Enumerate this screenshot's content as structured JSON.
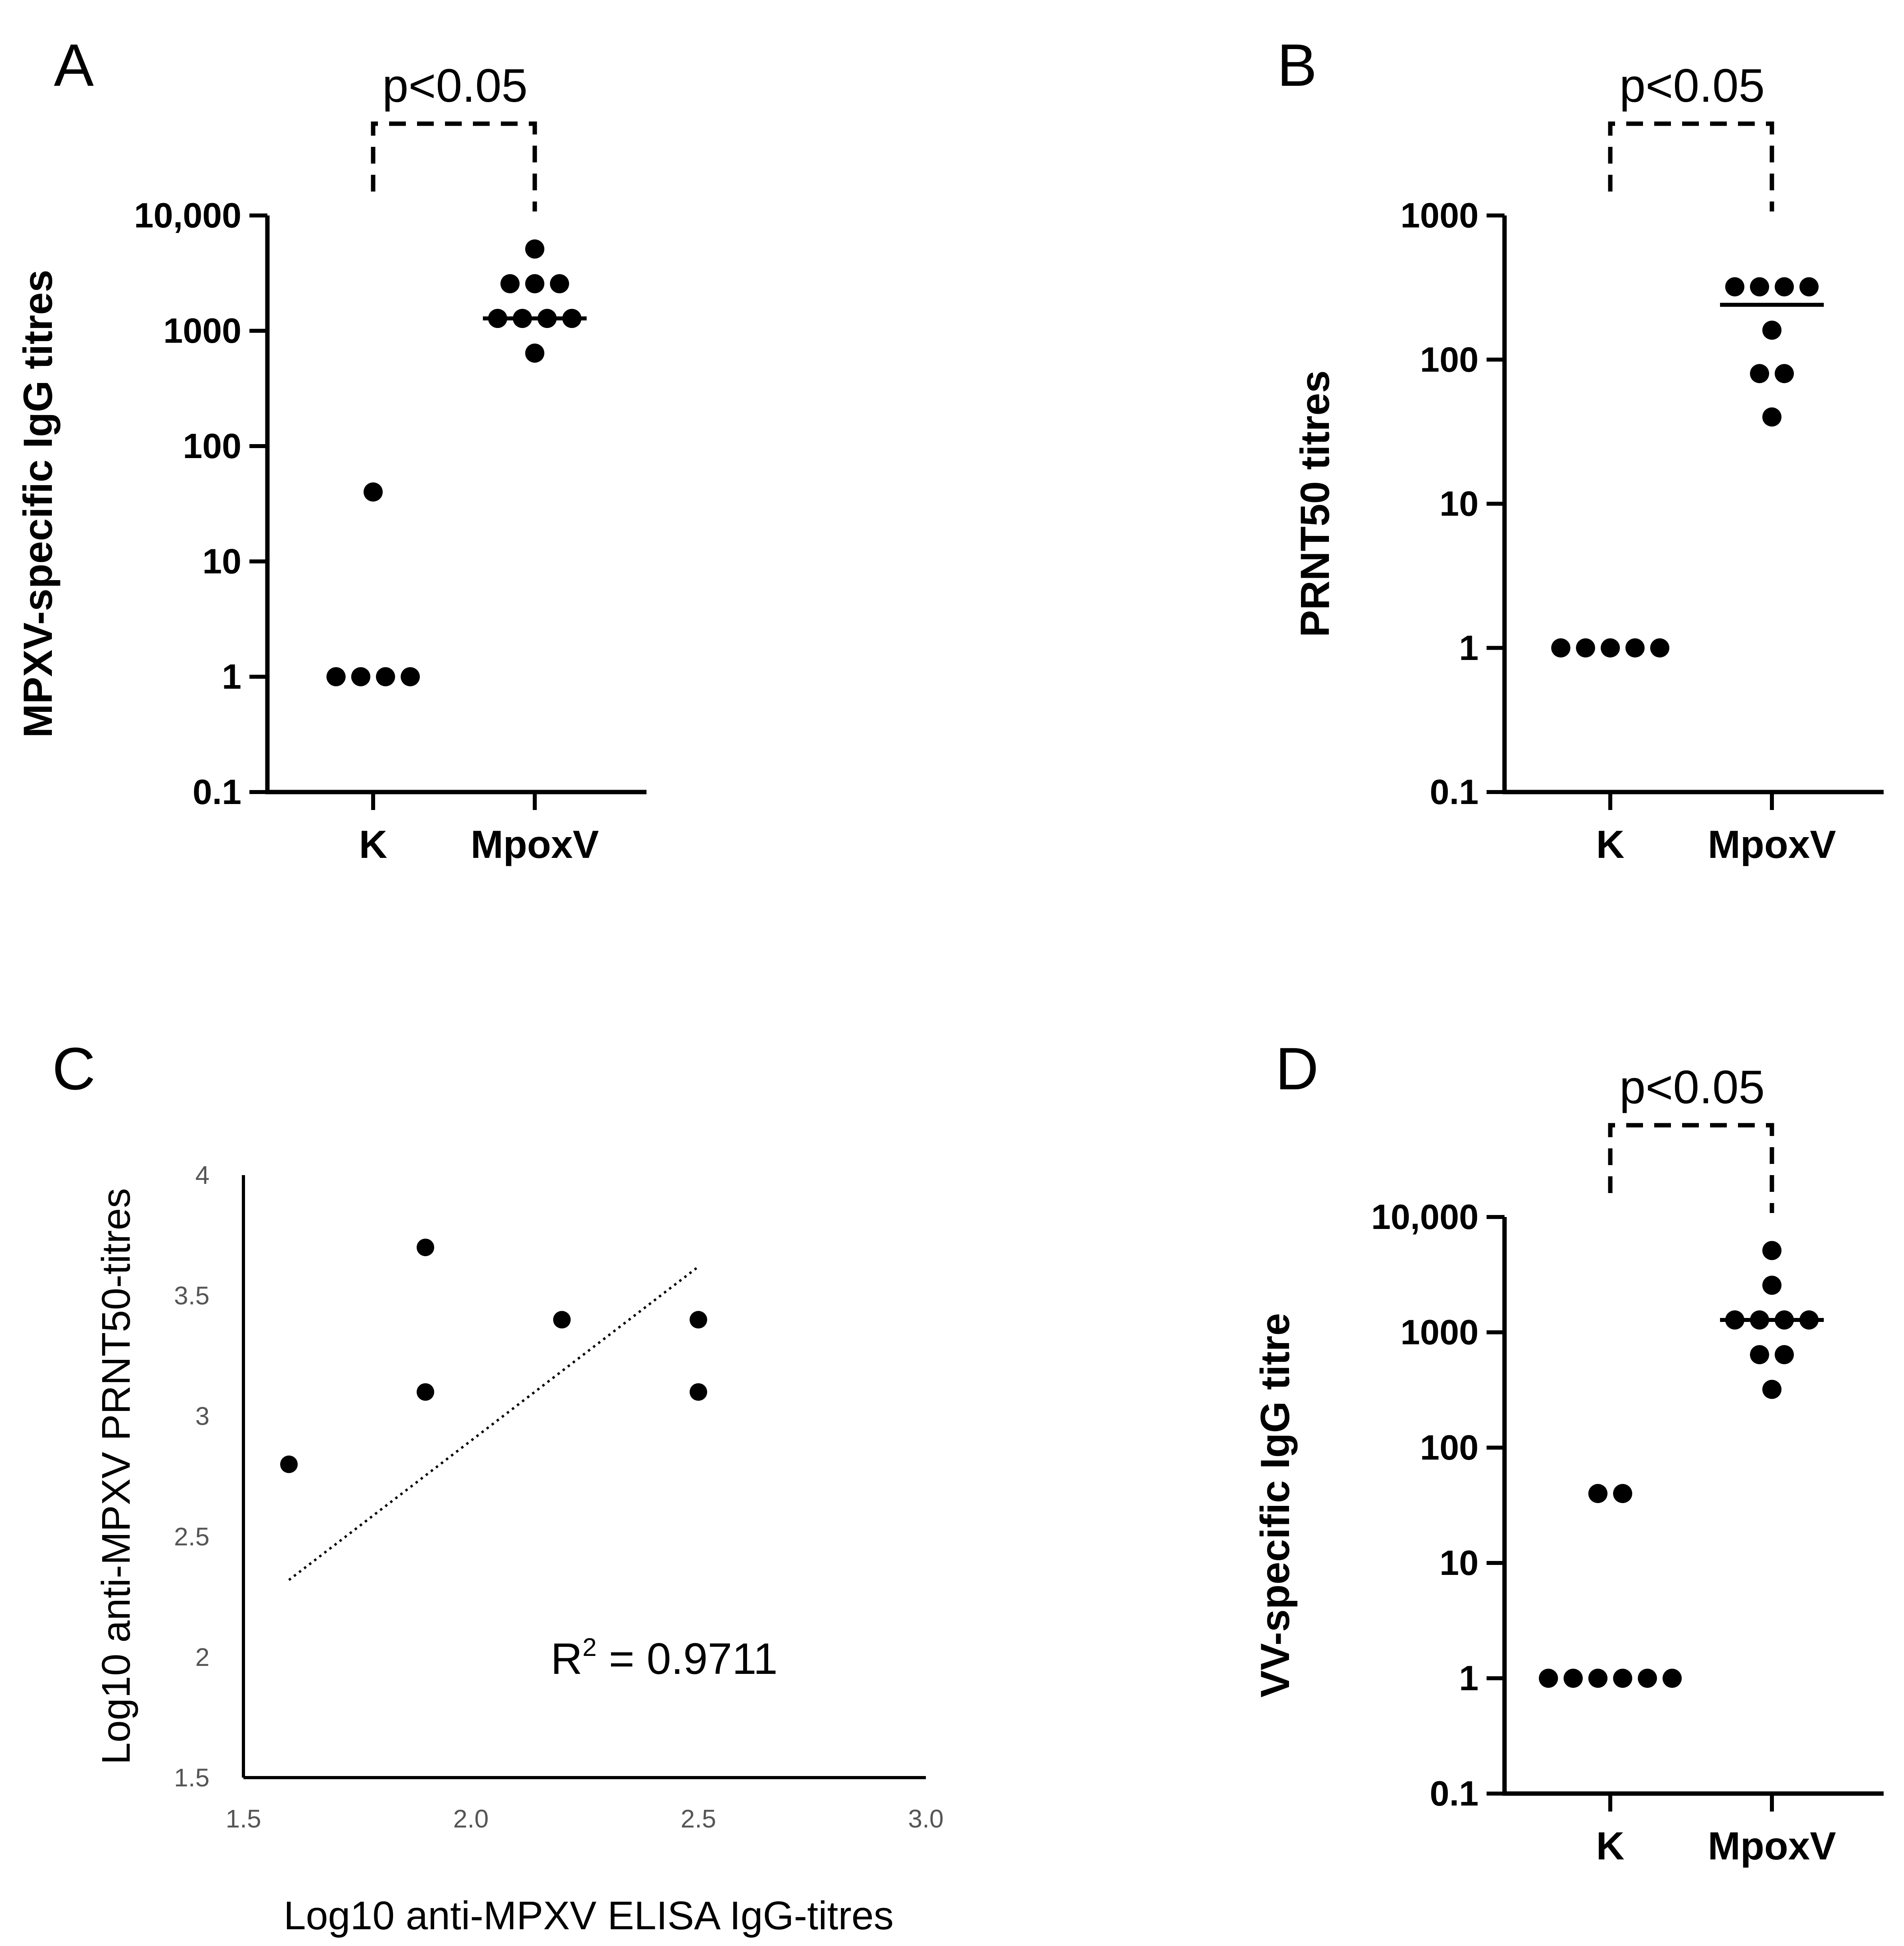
{
  "figure": {
    "panels": [
      {
        "letter": "A",
        "type": "scatter",
        "scale": "log",
        "ylabel": "MPXV-specific IgG titres",
        "y_ticks": [
          0.1,
          1,
          10,
          100,
          1000,
          10000
        ],
        "y_tick_labels": [
          "0.1",
          "1",
          "10",
          "100",
          "1000",
          "10,000"
        ],
        "categories": [
          "K",
          "MpoxV"
        ],
        "significance": "p<0.05",
        "groups": [
          {
            "category": "K",
            "points": [
              40,
              1,
              1,
              1,
              1
            ]
          },
          {
            "category": "MpoxV",
            "points": [
              5120,
              2560,
              2560,
              2560,
              1280,
              1280,
              1280,
              1280,
              640
            ],
            "median": 1280
          }
        ]
      },
      {
        "letter": "B",
        "type": "scatter",
        "scale": "log",
        "ylabel": "PRNT50 titres",
        "y_ticks": [
          0.1,
          1,
          10,
          100,
          1000
        ],
        "y_tick_labels": [
          "0.1",
          "1",
          "10",
          "100",
          "1000"
        ],
        "categories": [
          "K",
          "MpoxV"
        ],
        "significance": "p<0.05",
        "groups": [
          {
            "category": "K",
            "points": [
              1,
              1,
              1,
              1,
              1
            ]
          },
          {
            "category": "MpoxV",
            "points": [
              320,
              320,
              320,
              320,
              160,
              80,
              80,
              40
            ],
            "median": 240
          }
        ]
      },
      {
        "letter": "C",
        "type": "scatter",
        "scale": "linear",
        "xlabel": "Log10 anti-MPXV ELISA IgG-titres",
        "ylabel": "Log10 anti-MPXV PRNT50-titres",
        "x_ticks": [
          "1.5",
          "2.0",
          "2.5",
          "3.0"
        ],
        "y_ticks": [
          "4",
          "3.5",
          "3",
          "2.5",
          "2",
          "1.5"
        ],
        "xlim": [
          1.5,
          3.0
        ],
        "ylim": [
          1.5,
          4.0
        ],
        "points": [
          [
            1.6,
            2.8
          ],
          [
            1.9,
            3.7
          ],
          [
            1.9,
            3.1
          ],
          [
            2.2,
            3.4
          ],
          [
            2.5,
            3.4
          ],
          [
            2.5,
            3.1
          ]
        ],
        "trendline": [
          [
            1.6,
            2.32
          ],
          [
            2.5,
            3.62
          ]
        ],
        "r2_label": "R",
        "r2_sup": "2",
        "r2_value": " = 0.9711"
      },
      {
        "letter": "D",
        "type": "scatter",
        "scale": "log",
        "ylabel": "VV-specific IgG titre",
        "y_ticks": [
          0.1,
          1,
          10,
          100,
          1000,
          10000
        ],
        "y_tick_labels": [
          "0.1",
          "1",
          "10",
          "100",
          "1000",
          "10,000"
        ],
        "categories": [
          "K",
          "MpoxV"
        ],
        "significance": "p<0.05",
        "groups": [
          {
            "category": "K",
            "points": [
              40,
              40,
              1,
              1,
              1,
              1,
              1,
              1
            ]
          },
          {
            "category": "MpoxV",
            "points": [
              5120,
              2560,
              1280,
              1280,
              1280,
              1280,
              640,
              640,
              320
            ],
            "median": 1280
          }
        ]
      }
    ]
  }
}
